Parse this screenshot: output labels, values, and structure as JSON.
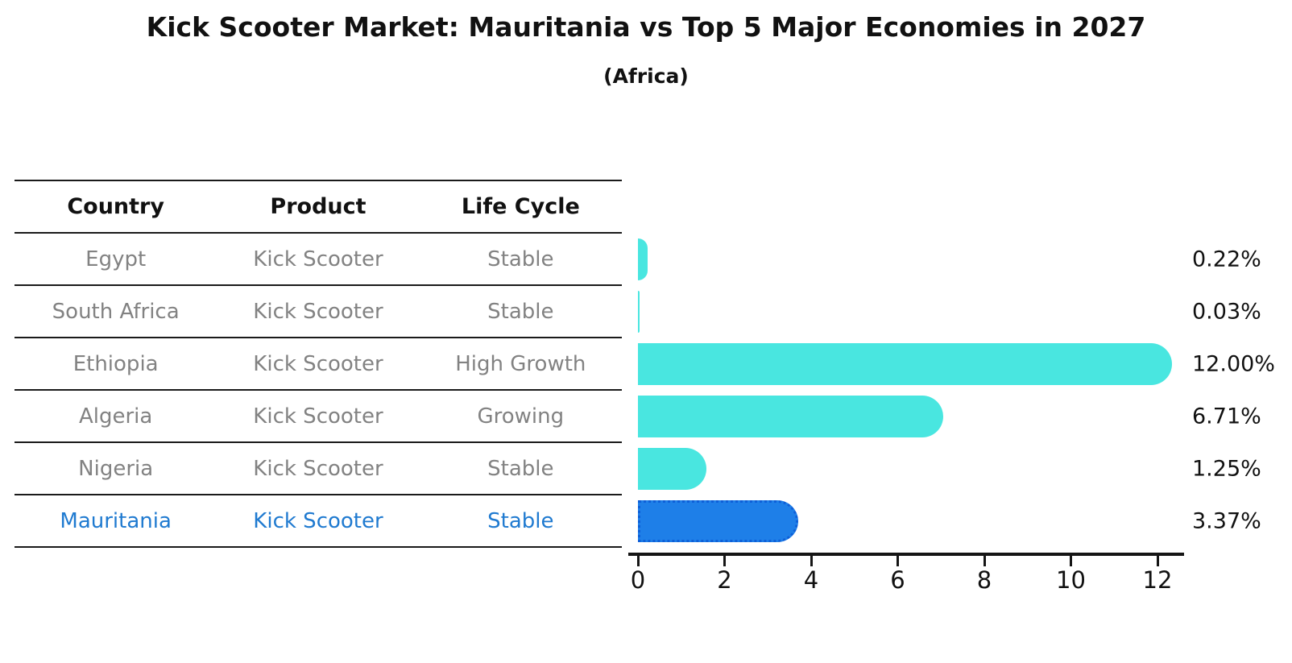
{
  "title": "Kick Scooter Market: Mauritania vs Top 5 Major Economies in 2027",
  "subtitle": "(Africa)",
  "table": {
    "headers": [
      "Country",
      "Product",
      "Life Cycle"
    ],
    "rows": [
      {
        "country": "Egypt",
        "product": "Kick Scooter",
        "life_cycle": "Stable",
        "highlight": false
      },
      {
        "country": "South Africa",
        "product": "Kick Scooter",
        "life_cycle": "Stable",
        "highlight": false
      },
      {
        "country": "Ethiopia",
        "product": "Kick Scooter",
        "life_cycle": "High Growth",
        "highlight": false
      },
      {
        "country": "Algeria",
        "product": "Kick Scooter",
        "life_cycle": "Growing",
        "highlight": false
      },
      {
        "country": "Nigeria",
        "product": "Kick Scooter",
        "life_cycle": "Stable",
        "highlight": false
      },
      {
        "country": "Mauritania",
        "product": "Kick Scooter",
        "life_cycle": "Stable",
        "highlight": true
      }
    ]
  },
  "chart_data": {
    "type": "bar",
    "orientation": "horizontal",
    "title": "Kick Scooter Market: Mauritania vs Top 5 Major Economies in 2027 (Africa)",
    "categories": [
      "Egypt",
      "South Africa",
      "Ethiopia",
      "Algeria",
      "Nigeria",
      "Mauritania"
    ],
    "values": [
      0.22,
      0.03,
      12.0,
      6.71,
      1.25,
      3.37
    ],
    "value_labels": [
      "0.22%",
      "0.03%",
      "12.00%",
      "6.71%",
      "1.25%",
      "3.37%"
    ],
    "xlabel": "",
    "ylabel": "",
    "x_ticks": [
      0,
      2,
      4,
      6,
      8,
      10,
      12
    ],
    "xlim": [
      0,
      12.6
    ],
    "grid": false,
    "legend": false,
    "highlight_index": 5
  },
  "colors": {
    "bar": "#49e6e0",
    "highlight_bar": "#1e7fe8",
    "highlight_border": "#0e5fd8",
    "highlight_text": "#1f7ad0",
    "table_text": "#828282",
    "header_text": "#111111",
    "line": "#1a1a1a"
  }
}
